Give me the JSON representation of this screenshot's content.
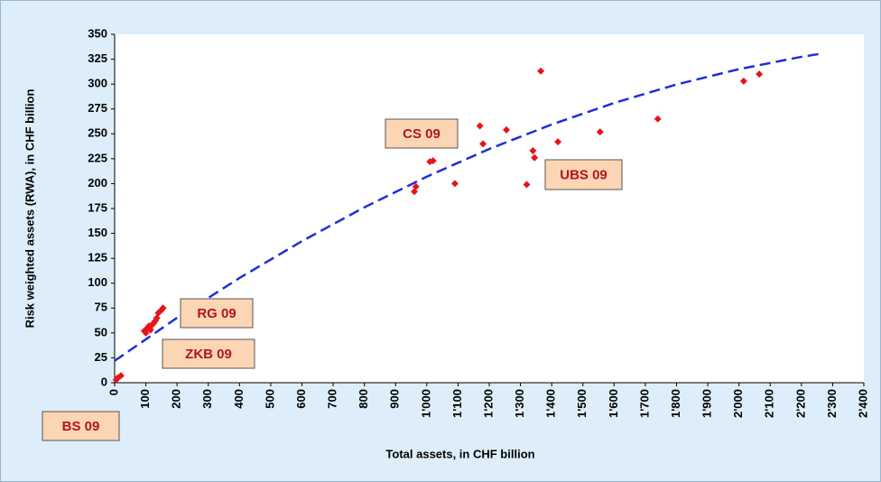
{
  "chart_data": {
    "type": "scatter",
    "x_label": "Total assets, in CHF billion",
    "y_label": "Risk weighted assets (RWA), in CHF billion",
    "xlim": [
      0,
      2400
    ],
    "ylim": [
      0,
      350
    ],
    "xticks": [
      0,
      100,
      200,
      300,
      400,
      500,
      600,
      700,
      800,
      900,
      {
        "value": 1000,
        "label": "1'000"
      },
      {
        "value": 1100,
        "label": "1'100"
      },
      {
        "value": 1200,
        "label": "1'200"
      },
      {
        "value": 1300,
        "label": "1'300"
      },
      {
        "value": 1400,
        "label": "1'400"
      },
      {
        "value": 1500,
        "label": "1'500"
      },
      {
        "value": 1600,
        "label": "1'600"
      },
      {
        "value": 1700,
        "label": "1'700"
      },
      {
        "value": 1800,
        "label": "1'800"
      },
      {
        "value": 1900,
        "label": "1'900"
      },
      {
        "value": 2000,
        "label": "2'000"
      },
      {
        "value": 2100,
        "label": "2'100"
      },
      {
        "value": 2200,
        "label": "2'200"
      },
      {
        "value": 2300,
        "label": "2'300"
      },
      {
        "value": 2400,
        "label": "2'400"
      }
    ],
    "yticks": [
      0,
      25,
      50,
      75,
      100,
      125,
      150,
      175,
      200,
      225,
      250,
      275,
      300,
      325,
      350
    ],
    "series": [
      {
        "color": "#e8141c",
        "x": [
          5,
          10,
          20,
          95,
          100,
          105,
          110,
          115,
          120,
          125,
          130,
          135,
          140,
          150,
          155,
          960,
          965,
          1010,
          1020,
          1090,
          1170,
          1180,
          1255,
          1320,
          1340,
          1345,
          1365,
          1420,
          1555,
          1740,
          2015,
          2065
        ],
        "values": [
          3,
          5,
          7,
          52,
          50,
          55,
          57,
          53,
          58,
          60,
          62,
          65,
          70,
          73,
          75,
          192,
          197,
          222,
          223,
          200,
          258,
          240,
          254,
          199,
          233,
          226,
          313,
          242,
          252,
          265,
          303,
          310
        ]
      },
      {
        "type": "line",
        "color": "#1f2ed6",
        "x": [
          0,
          200,
          400,
          600,
          800,
          1000,
          1200,
          1400,
          1600,
          1800,
          2000,
          2200,
          2270
        ],
        "values": [
          22,
          65.2,
          105.2,
          142.2,
          176.2,
          207,
          234.8,
          259.4,
          281,
          299.6,
          315,
          327.4,
          330.9
        ]
      }
    ],
    "annotations": [
      "CS 09",
      "UBS 09",
      "RG 09",
      "ZKB 09",
      "BS 09"
    ]
  }
}
